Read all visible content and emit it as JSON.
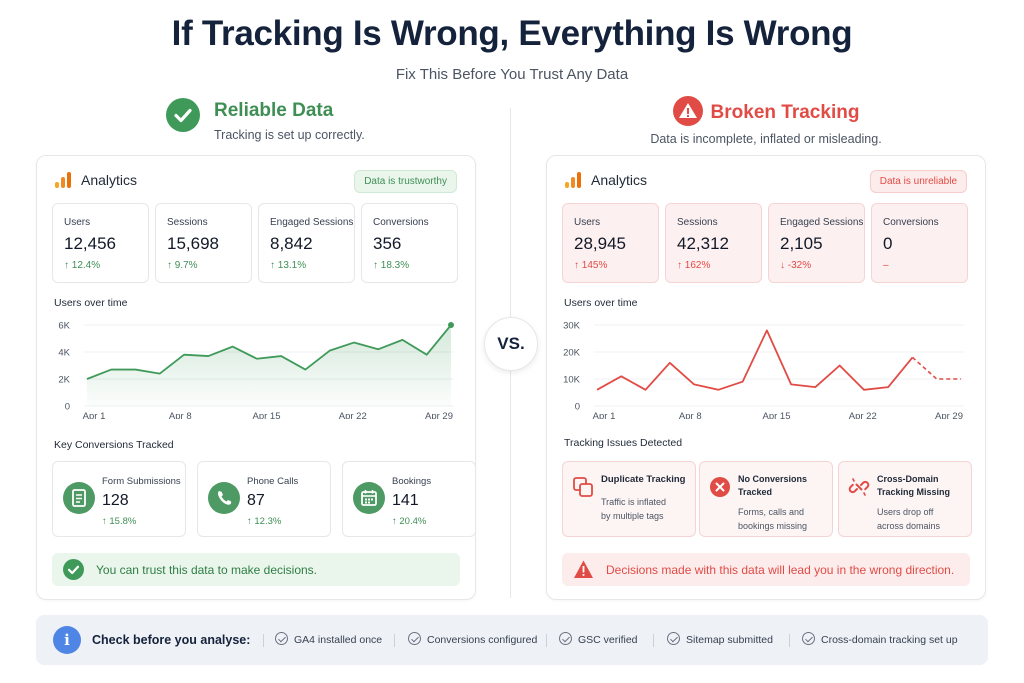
{
  "header": {
    "title": "If Tracking Is Wrong, Everything Is Wrong",
    "subtitle": "Fix This Before You Trust Any Data",
    "vs": "VS."
  },
  "left": {
    "heading": "Reliable Data",
    "description": "Tracking is set up correctly.",
    "panel_title": "Analytics",
    "badge": "Data is trustworthy",
    "metrics": [
      {
        "label": "Users",
        "value": "12,456",
        "delta": "12.4%",
        "trend": "up"
      },
      {
        "label": "Sessions",
        "value": "15,698",
        "delta": "9.7%",
        "trend": "up"
      },
      {
        "label": "Engaged Sessions",
        "value": "8,842",
        "delta": "13.1%",
        "trend": "up"
      },
      {
        "label": "Conversions",
        "value": "356",
        "delta": "18.3%",
        "trend": "up"
      }
    ],
    "chart_label": "Users over time",
    "section_label": "Key Conversions Tracked",
    "conversions": [
      {
        "label": "Form Submissions",
        "value": "128",
        "delta": "15.8%",
        "icon": "form-icon"
      },
      {
        "label": "Phone Calls",
        "value": "87",
        "delta": "12.3%",
        "icon": "phone-icon"
      },
      {
        "label": "Bookings",
        "value": "141",
        "delta": "20.4%",
        "icon": "calendar-icon"
      }
    ],
    "footnote": "You can trust this data to make decisions.",
    "accent": "#3f8f55"
  },
  "right": {
    "heading": "Broken Tracking",
    "description": "Data is incomplete, inflated or misleading.",
    "panel_title": "Analytics",
    "badge": "Data is unreliable",
    "metrics": [
      {
        "label": "Users",
        "value": "28,945",
        "delta": "145%",
        "trend": "up"
      },
      {
        "label": "Sessions",
        "value": "42,312",
        "delta": "162%",
        "trend": "up"
      },
      {
        "label": "Engaged Sessions",
        "value": "2,105",
        "delta": "-32%",
        "trend": "down"
      },
      {
        "label": "Conversions",
        "value": "0",
        "delta": "–",
        "trend": "none"
      }
    ],
    "chart_label": "Users over time",
    "section_label": "Tracking Issues Detected",
    "issues": [
      {
        "title": "Duplicate Tracking",
        "desc1": "Traffic is inflated",
        "desc2": "by multiple tags",
        "icon": "duplicate-icon"
      },
      {
        "title": "No Conversions Tracked",
        "desc1": "Forms, calls and",
        "desc2": "bookings missing",
        "icon": "error-icon"
      },
      {
        "title": "Cross-Domain Tracking Missing",
        "desc1": "Users drop off",
        "desc2": "across domains",
        "icon": "broken-link-icon"
      }
    ],
    "footnote": "Decisions made with this data will lead you in the wrong direction.",
    "accent": "#e14b45"
  },
  "checklist": {
    "label": "Check before you analyse:",
    "items": [
      "GA4 installed once",
      "Conversions configured",
      "GSC verified",
      "Sitemap submitted",
      "Cross-domain tracking set up"
    ]
  },
  "chart_data": [
    {
      "type": "area",
      "title": "Users over time",
      "x": [
        "Apr 1",
        "Apr 3",
        "Apr 5",
        "Apr 7",
        "Apr 9",
        "Apr 11",
        "Apr 13",
        "Apr 15",
        "Apr 17",
        "Apr 19",
        "Apr 21",
        "Apr 23",
        "Apr 25",
        "Apr 27",
        "Apr 29",
        "Apr 30"
      ],
      "xticks": [
        "Apr 1",
        "Apr 8",
        "Apr 15",
        "Apr 22",
        "Apr 29"
      ],
      "yticks": [
        "0",
        "2K",
        "4K",
        "6K"
      ],
      "ylim": [
        0,
        6000
      ],
      "values": [
        2000,
        2700,
        2700,
        2400,
        3800,
        3700,
        4400,
        3500,
        3700,
        2700,
        4100,
        4700,
        4200,
        4900,
        3800,
        6000
      ],
      "color": "#3f9a5a"
    },
    {
      "type": "line",
      "title": "Users over time",
      "x": [
        "Apr 1",
        "Apr 3",
        "Apr 5",
        "Apr 7",
        "Apr 9",
        "Apr 11",
        "Apr 13",
        "Apr 15",
        "Apr 17",
        "Apr 19",
        "Apr 21",
        "Apr 23",
        "Apr 25",
        "Apr 27",
        "Apr 29",
        "Apr 30"
      ],
      "xticks": [
        "Apr 1",
        "Apr 8",
        "Apr 15",
        "Apr 22",
        "Apr 29"
      ],
      "yticks": [
        "0",
        "10K",
        "20K",
        "30K"
      ],
      "ylim": [
        0,
        30000
      ],
      "values": [
        6000,
        11000,
        6000,
        16000,
        8000,
        6000,
        9000,
        28000,
        8000,
        7000,
        15000,
        6000,
        7000,
        18000,
        10000,
        10000
      ],
      "dashed_from_index": 13,
      "color": "#e14b45"
    }
  ]
}
